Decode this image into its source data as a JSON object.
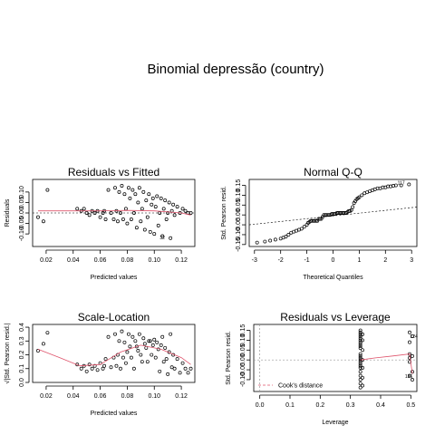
{
  "main_title": "Binomial depressão (country)",
  "chart_data": [
    {
      "type": "scatter",
      "title": "Residuals vs Fitted",
      "xlabel": "Predicted values",
      "ylabel": "Residuals",
      "xlim": [
        0.01,
        0.13
      ],
      "ylim": [
        -0.16,
        0.16
      ],
      "xticks": [
        0.02,
        0.04,
        0.06,
        0.08,
        0.1,
        0.12
      ],
      "xtick_labels": [
        "0.02",
        "0.04",
        "0.06",
        "0.08",
        "0.10",
        "0.12"
      ],
      "yticks": [
        -0.1,
        -0.05,
        0.0,
        0.05,
        0.1
      ],
      "ytick_labels": [
        "-0.10",
        "-0.05",
        "0.00",
        "0.05",
        "0.10"
      ],
      "reference_line": {
        "y": 0
      },
      "points": [
        [
          0.014,
          -0.02
        ],
        [
          0.018,
          -0.04
        ],
        [
          0.021,
          0.11
        ],
        [
          0.043,
          0.02
        ],
        [
          0.046,
          0.01
        ],
        [
          0.048,
          0.02
        ],
        [
          0.05,
          0.0
        ],
        [
          0.052,
          -0.01
        ],
        [
          0.054,
          0.01
        ],
        [
          0.056,
          0.0
        ],
        [
          0.058,
          0.01
        ],
        [
          0.06,
          -0.02
        ],
        [
          0.062,
          0.0
        ],
        [
          0.063,
          0.01
        ],
        [
          0.064,
          -0.03
        ],
        [
          0.066,
          0.11
        ],
        [
          0.068,
          0.0
        ],
        [
          0.07,
          -0.03
        ],
        [
          0.071,
          0.12
        ],
        [
          0.072,
          0.01
        ],
        [
          0.073,
          -0.04
        ],
        [
          0.074,
          0.1
        ],
        [
          0.075,
          0.0
        ],
        [
          0.076,
          0.13
        ],
        [
          0.077,
          -0.03
        ],
        [
          0.078,
          0.09
        ],
        [
          0.079,
          0.02
        ],
        [
          0.08,
          -0.05
        ],
        [
          0.081,
          0.12
        ],
        [
          0.082,
          0.07
        ],
        [
          0.083,
          -0.03
        ],
        [
          0.084,
          0.11
        ],
        [
          0.085,
          0.0
        ],
        [
          0.086,
          0.09
        ],
        [
          0.087,
          -0.07
        ],
        [
          0.088,
          0.05
        ],
        [
          0.089,
          0.12
        ],
        [
          0.09,
          -0.04
        ],
        [
          0.091,
          0.02
        ],
        [
          0.092,
          0.1
        ],
        [
          0.093,
          -0.08
        ],
        [
          0.094,
          0.06
        ],
        [
          0.095,
          -0.02
        ],
        [
          0.096,
          0.09
        ],
        [
          0.097,
          -0.09
        ],
        [
          0.098,
          0.04
        ],
        [
          0.099,
          0.07
        ],
        [
          0.1,
          -0.1
        ],
        [
          0.101,
          0.03
        ],
        [
          0.102,
          0.08
        ],
        [
          0.103,
          -0.06
        ],
        [
          0.104,
          0.0
        ],
        [
          0.105,
          0.07
        ],
        [
          0.106,
          -0.11
        ],
        [
          0.107,
          0.02
        ],
        [
          0.108,
          0.06
        ],
        [
          0.109,
          -0.03
        ],
        [
          0.11,
          0.0
        ],
        [
          0.111,
          0.05
        ],
        [
          0.112,
          -0.12
        ],
        [
          0.113,
          0.01
        ],
        [
          0.114,
          0.04
        ],
        [
          0.115,
          -0.01
        ],
        [
          0.117,
          0.03
        ],
        [
          0.119,
          0.0
        ],
        [
          0.121,
          0.02
        ],
        [
          0.123,
          0.01
        ],
        [
          0.125,
          0.0
        ],
        [
          0.127,
          0.0
        ]
      ],
      "smooth": [
        [
          0.014,
          0.01
        ],
        [
          0.04,
          0.01
        ],
        [
          0.06,
          0.01
        ],
        [
          0.08,
          0.012
        ],
        [
          0.1,
          0.01
        ],
        [
          0.12,
          0.0
        ],
        [
          0.127,
          -0.01
        ]
      ],
      "point_labels": [
        {
          "text": "32",
          "x": 0.106,
          "y": -0.125
        }
      ]
    },
    {
      "type": "scatter",
      "title": "Normal Q-Q",
      "xlabel": "Theoretical Quantiles",
      "ylabel": "Std. Pearson resid.",
      "xlim": [
        -3.2,
        3.2
      ],
      "ylim": [
        -0.16,
        0.18
      ],
      "xticks": [
        -3,
        -2,
        -1,
        0,
        1,
        2,
        3
      ],
      "xtick_labels": [
        "-3",
        "-2",
        "-1",
        "0",
        "1",
        "2",
        "3"
      ],
      "yticks": [
        -0.15,
        -0.1,
        -0.05,
        0.0,
        0.05,
        0.1,
        0.15
      ],
      "ytick_labels": [
        "-0.15",
        "-0.10",
        "-0.05",
        "0.00",
        "0.05",
        "0.10",
        "0.15"
      ],
      "reference_line": {
        "from": [
          -3.2,
          -0.05
        ],
        "to": [
          3.2,
          0.04
        ]
      },
      "points": [
        [
          -2.9,
          -0.14
        ],
        [
          -2.6,
          -0.135
        ],
        [
          -2.4,
          -0.13
        ],
        [
          -2.2,
          -0.125
        ],
        [
          -2.0,
          -0.12
        ],
        [
          -1.9,
          -0.115
        ],
        [
          -1.8,
          -0.11
        ],
        [
          -1.7,
          -0.1
        ],
        [
          -1.6,
          -0.09
        ],
        [
          -1.5,
          -0.085
        ],
        [
          -1.4,
          -0.08
        ],
        [
          -1.3,
          -0.075
        ],
        [
          -1.2,
          -0.07
        ],
        [
          -1.1,
          -0.06
        ],
        [
          -1.0,
          -0.05
        ],
        [
          -0.95,
          -0.04
        ],
        [
          -0.9,
          -0.035
        ],
        [
          -0.85,
          -0.03
        ],
        [
          -0.8,
          -0.03
        ],
        [
          -0.75,
          -0.03
        ],
        [
          -0.7,
          -0.03
        ],
        [
          -0.65,
          -0.03
        ],
        [
          -0.6,
          -0.03
        ],
        [
          -0.55,
          -0.02
        ],
        [
          -0.5,
          -0.02
        ],
        [
          -0.45,
          -0.02
        ],
        [
          -0.4,
          -0.01
        ],
        [
          -0.35,
          0.0
        ],
        [
          -0.3,
          0.0
        ],
        [
          -0.25,
          0.0
        ],
        [
          -0.2,
          0.0
        ],
        [
          -0.15,
          0.0
        ],
        [
          -0.1,
          0.0
        ],
        [
          -0.05,
          0.005
        ],
        [
          0.0,
          0.005
        ],
        [
          0.05,
          0.005
        ],
        [
          0.1,
          0.005
        ],
        [
          0.15,
          0.01
        ],
        [
          0.2,
          0.01
        ],
        [
          0.25,
          0.01
        ],
        [
          0.3,
          0.01
        ],
        [
          0.35,
          0.01
        ],
        [
          0.4,
          0.01
        ],
        [
          0.45,
          0.01
        ],
        [
          0.5,
          0.01
        ],
        [
          0.55,
          0.015
        ],
        [
          0.6,
          0.02
        ],
        [
          0.65,
          0.02
        ],
        [
          0.7,
          0.025
        ],
        [
          0.75,
          0.04
        ],
        [
          0.8,
          0.06
        ],
        [
          0.85,
          0.07
        ],
        [
          0.9,
          0.08
        ],
        [
          0.95,
          0.085
        ],
        [
          1.0,
          0.09
        ],
        [
          1.1,
          0.1
        ],
        [
          1.2,
          0.11
        ],
        [
          1.3,
          0.115
        ],
        [
          1.4,
          0.12
        ],
        [
          1.5,
          0.125
        ],
        [
          1.6,
          0.13
        ],
        [
          1.7,
          0.135
        ],
        [
          1.8,
          0.135
        ],
        [
          1.9,
          0.14
        ],
        [
          2.0,
          0.14
        ],
        [
          2.1,
          0.145
        ],
        [
          2.2,
          0.145
        ],
        [
          2.3,
          0.148
        ],
        [
          2.4,
          0.15
        ],
        [
          2.6,
          0.15
        ],
        [
          2.9,
          0.155
        ]
      ],
      "point_labels": [
        {
          "text": "117",
          "x": 2.6,
          "y": 0.155
        }
      ]
    },
    {
      "type": "scatter",
      "title": "Scale-Location",
      "xlabel": "Predicted values",
      "ylabel": "√|Std. Pearson resid.|",
      "xlim": [
        0.01,
        0.13
      ],
      "ylim": [
        0.0,
        0.42
      ],
      "xticks": [
        0.02,
        0.04,
        0.06,
        0.08,
        0.1,
        0.12
      ],
      "xtick_labels": [
        "0.02",
        "0.04",
        "0.06",
        "0.08",
        "0.10",
        "0.12"
      ],
      "yticks": [
        0.0,
        0.1,
        0.2,
        0.3,
        0.4
      ],
      "ytick_labels": [
        "0.0",
        "0.1",
        "0.2",
        "0.3",
        "0.4"
      ],
      "points": [
        [
          0.014,
          0.23
        ],
        [
          0.018,
          0.28
        ],
        [
          0.021,
          0.36
        ],
        [
          0.043,
          0.13
        ],
        [
          0.046,
          0.1
        ],
        [
          0.048,
          0.12
        ],
        [
          0.05,
          0.08
        ],
        [
          0.052,
          0.13
        ],
        [
          0.054,
          0.1
        ],
        [
          0.056,
          0.12
        ],
        [
          0.058,
          0.09
        ],
        [
          0.06,
          0.14
        ],
        [
          0.062,
          0.1
        ],
        [
          0.063,
          0.12
        ],
        [
          0.064,
          0.17
        ],
        [
          0.066,
          0.33
        ],
        [
          0.068,
          0.11
        ],
        [
          0.07,
          0.18
        ],
        [
          0.071,
          0.35
        ],
        [
          0.072,
          0.12
        ],
        [
          0.073,
          0.2
        ],
        [
          0.074,
          0.3
        ],
        [
          0.075,
          0.1
        ],
        [
          0.076,
          0.37
        ],
        [
          0.077,
          0.18
        ],
        [
          0.078,
          0.29
        ],
        [
          0.079,
          0.14
        ],
        [
          0.08,
          0.22
        ],
        [
          0.081,
          0.35
        ],
        [
          0.082,
          0.26
        ],
        [
          0.083,
          0.18
        ],
        [
          0.084,
          0.33
        ],
        [
          0.085,
          0.1
        ],
        [
          0.086,
          0.3
        ],
        [
          0.087,
          0.26
        ],
        [
          0.088,
          0.23
        ],
        [
          0.089,
          0.35
        ],
        [
          0.09,
          0.2
        ],
        [
          0.091,
          0.15
        ],
        [
          0.092,
          0.32
        ],
        [
          0.093,
          0.28
        ],
        [
          0.094,
          0.25
        ],
        [
          0.095,
          0.15
        ],
        [
          0.096,
          0.3
        ],
        [
          0.097,
          0.3
        ],
        [
          0.098,
          0.2
        ],
        [
          0.099,
          0.27
        ],
        [
          0.1,
          0.31
        ],
        [
          0.101,
          0.18
        ],
        [
          0.102,
          0.29
        ],
        [
          0.103,
          0.24
        ],
        [
          0.104,
          0.08
        ],
        [
          0.105,
          0.27
        ],
        [
          0.106,
          0.33
        ],
        [
          0.107,
          0.15
        ],
        [
          0.108,
          0.25
        ],
        [
          0.109,
          0.17
        ],
        [
          0.11,
          0.06
        ],
        [
          0.111,
          0.22
        ],
        [
          0.112,
          0.35
        ],
        [
          0.113,
          0.11
        ],
        [
          0.114,
          0.2
        ],
        [
          0.115,
          0.1
        ],
        [
          0.117,
          0.17
        ],
        [
          0.119,
          0.07
        ],
        [
          0.121,
          0.14
        ],
        [
          0.123,
          0.1
        ],
        [
          0.125,
          0.07
        ],
        [
          0.127,
          0.1
        ]
      ],
      "smooth": [
        [
          0.014,
          0.24
        ],
        [
          0.03,
          0.18
        ],
        [
          0.045,
          0.12
        ],
        [
          0.06,
          0.13
        ],
        [
          0.075,
          0.22
        ],
        [
          0.09,
          0.27
        ],
        [
          0.105,
          0.24
        ],
        [
          0.12,
          0.18
        ],
        [
          0.127,
          0.13
        ]
      ]
    },
    {
      "type": "scatter",
      "title": "Residuals vs Leverage",
      "xlabel": "Leverage",
      "ylabel": "Std. Pearson resid.",
      "xlim": [
        -0.02,
        0.52
      ],
      "ylim": [
        -0.16,
        0.18
      ],
      "xticks": [
        0.0,
        0.1,
        0.2,
        0.3,
        0.4,
        0.5
      ],
      "xtick_labels": [
        "0.0",
        "0.1",
        "0.2",
        "0.3",
        "0.4",
        "0.5"
      ],
      "yticks": [
        -0.1,
        -0.05,
        0.0,
        0.05,
        0.1,
        0.15
      ],
      "ytick_labels": [
        "-0.10",
        "-0.05",
        "0.00",
        "0.05",
        "0.10",
        "0.15"
      ],
      "reference_lines": [
        {
          "y": 0
        },
        {
          "x": 0
        }
      ],
      "points": [
        [
          0.333,
          0.15
        ],
        [
          0.333,
          0.14
        ],
        [
          0.333,
          0.13
        ],
        [
          0.333,
          0.12
        ],
        [
          0.333,
          0.11
        ],
        [
          0.333,
          0.1
        ],
        [
          0.333,
          0.09
        ],
        [
          0.333,
          0.08
        ],
        [
          0.333,
          0.07
        ],
        [
          0.333,
          0.06
        ],
        [
          0.333,
          0.03
        ],
        [
          0.333,
          0.02
        ],
        [
          0.333,
          0.01
        ],
        [
          0.333,
          0.0
        ],
        [
          0.333,
          -0.01
        ],
        [
          0.333,
          -0.02
        ],
        [
          0.333,
          -0.03
        ],
        [
          0.333,
          -0.04
        ],
        [
          0.333,
          -0.06
        ],
        [
          0.333,
          -0.08
        ],
        [
          0.333,
          -0.1
        ],
        [
          0.333,
          -0.12
        ],
        [
          0.333,
          -0.14
        ],
        [
          0.34,
          0.13
        ],
        [
          0.34,
          0.1
        ],
        [
          0.34,
          0.05
        ],
        [
          0.34,
          0.0
        ],
        [
          0.34,
          -0.04
        ],
        [
          0.34,
          -0.09
        ],
        [
          0.34,
          -0.13
        ],
        [
          0.496,
          0.14
        ],
        [
          0.496,
          0.09
        ],
        [
          0.496,
          0.03
        ],
        [
          0.496,
          0.01
        ],
        [
          0.496,
          -0.01
        ],
        [
          0.496,
          -0.08
        ],
        [
          0.505,
          0.12
        ],
        [
          0.505,
          0.02
        ],
        [
          0.505,
          -0.06
        ],
        [
          0.505,
          -0.1
        ]
      ],
      "smooth": [
        [
          0.333,
          0.0
        ],
        [
          0.38,
          0.01
        ],
        [
          0.44,
          0.02
        ],
        [
          0.496,
          0.03
        ],
        [
          0.505,
          -0.07
        ]
      ],
      "point_labels": [
        {
          "text": "124",
          "x": 0.51,
          "y": 0.11
        },
        {
          "text": "136",
          "x": 0.493,
          "y": -0.09
        }
      ],
      "legend": {
        "label": "Cook's distance",
        "placement": "bottom-left"
      }
    }
  ]
}
